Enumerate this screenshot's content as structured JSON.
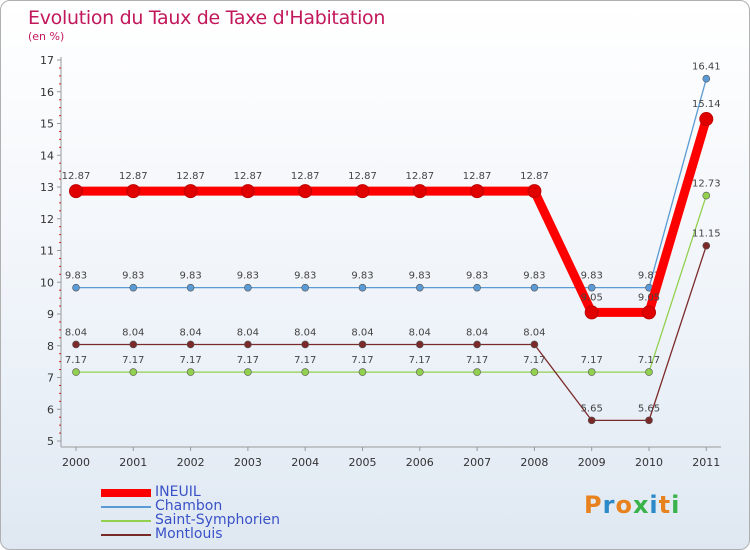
{
  "header": {
    "title": "Evolution du Taux de Taxe d'Habitation",
    "subtitle": "(en %)"
  },
  "logo": {
    "text": "Proxiti",
    "colors": [
      "#e8821e",
      "#2c8ac9",
      "#e8821e",
      "#3ab34a",
      "#2c8ac9",
      "#e8821e",
      "#3ab34a"
    ]
  },
  "chart_data": {
    "type": "line",
    "title": "Evolution du Taux de Taxe d'Habitation",
    "ylabel": "(en %)",
    "xlabel": "",
    "categories": [
      "2000",
      "2001",
      "2002",
      "2003",
      "2004",
      "2005",
      "2006",
      "2007",
      "2008",
      "2009",
      "2010",
      "2011"
    ],
    "ylim": [
      5,
      17
    ],
    "yticks": [
      5,
      6,
      7,
      8,
      9,
      10,
      11,
      12,
      13,
      14,
      15,
      16,
      17
    ],
    "grid": false,
    "legend_position": "bottom-left",
    "series": [
      {
        "name": "INEUIL",
        "color": "#ff0000",
        "highlight": true,
        "values": [
          12.87,
          12.87,
          12.87,
          12.87,
          12.87,
          12.87,
          12.87,
          12.87,
          12.87,
          9.05,
          9.05,
          15.14
        ],
        "labels": [
          "12.87",
          "12.87",
          "12.87",
          "12.87",
          "12.87",
          "12.87",
          "12.87",
          "12.87",
          "12.87",
          "9.05",
          "9.05",
          "15.14"
        ]
      },
      {
        "name": "Chambon",
        "color": "#5b9bd5",
        "highlight": false,
        "values": [
          9.83,
          9.83,
          9.83,
          9.83,
          9.83,
          9.83,
          9.83,
          9.83,
          9.83,
          9.83,
          9.83,
          16.41
        ],
        "labels": [
          "9.83",
          "9.83",
          "9.83",
          "9.83",
          "9.83",
          "9.83",
          "9.83",
          "9.83",
          "9.83",
          "9.83",
          "9.83",
          "16.41"
        ]
      },
      {
        "name": "Saint-Symphorien",
        "color": "#92d050",
        "highlight": false,
        "values": [
          7.17,
          7.17,
          7.17,
          7.17,
          7.17,
          7.17,
          7.17,
          7.17,
          7.17,
          7.17,
          7.17,
          12.73
        ],
        "labels": [
          "7.17",
          "7.17",
          "7.17",
          "7.17",
          "7.17",
          "7.17",
          "7.17",
          "7.17",
          "7.17",
          "7.17",
          "7.17",
          "12.73"
        ]
      },
      {
        "name": "Montlouis",
        "color": "#7b2a2a",
        "highlight": false,
        "values": [
          8.04,
          8.04,
          8.04,
          8.04,
          8.04,
          8.04,
          8.04,
          8.04,
          8.04,
          5.65,
          5.65,
          11.15
        ],
        "labels": [
          "8.04",
          "8.04",
          "8.04",
          "8.04",
          "8.04",
          "8.04",
          "8.04",
          "8.04",
          "8.04",
          "5.65",
          "5.65",
          "11.15"
        ]
      }
    ]
  }
}
